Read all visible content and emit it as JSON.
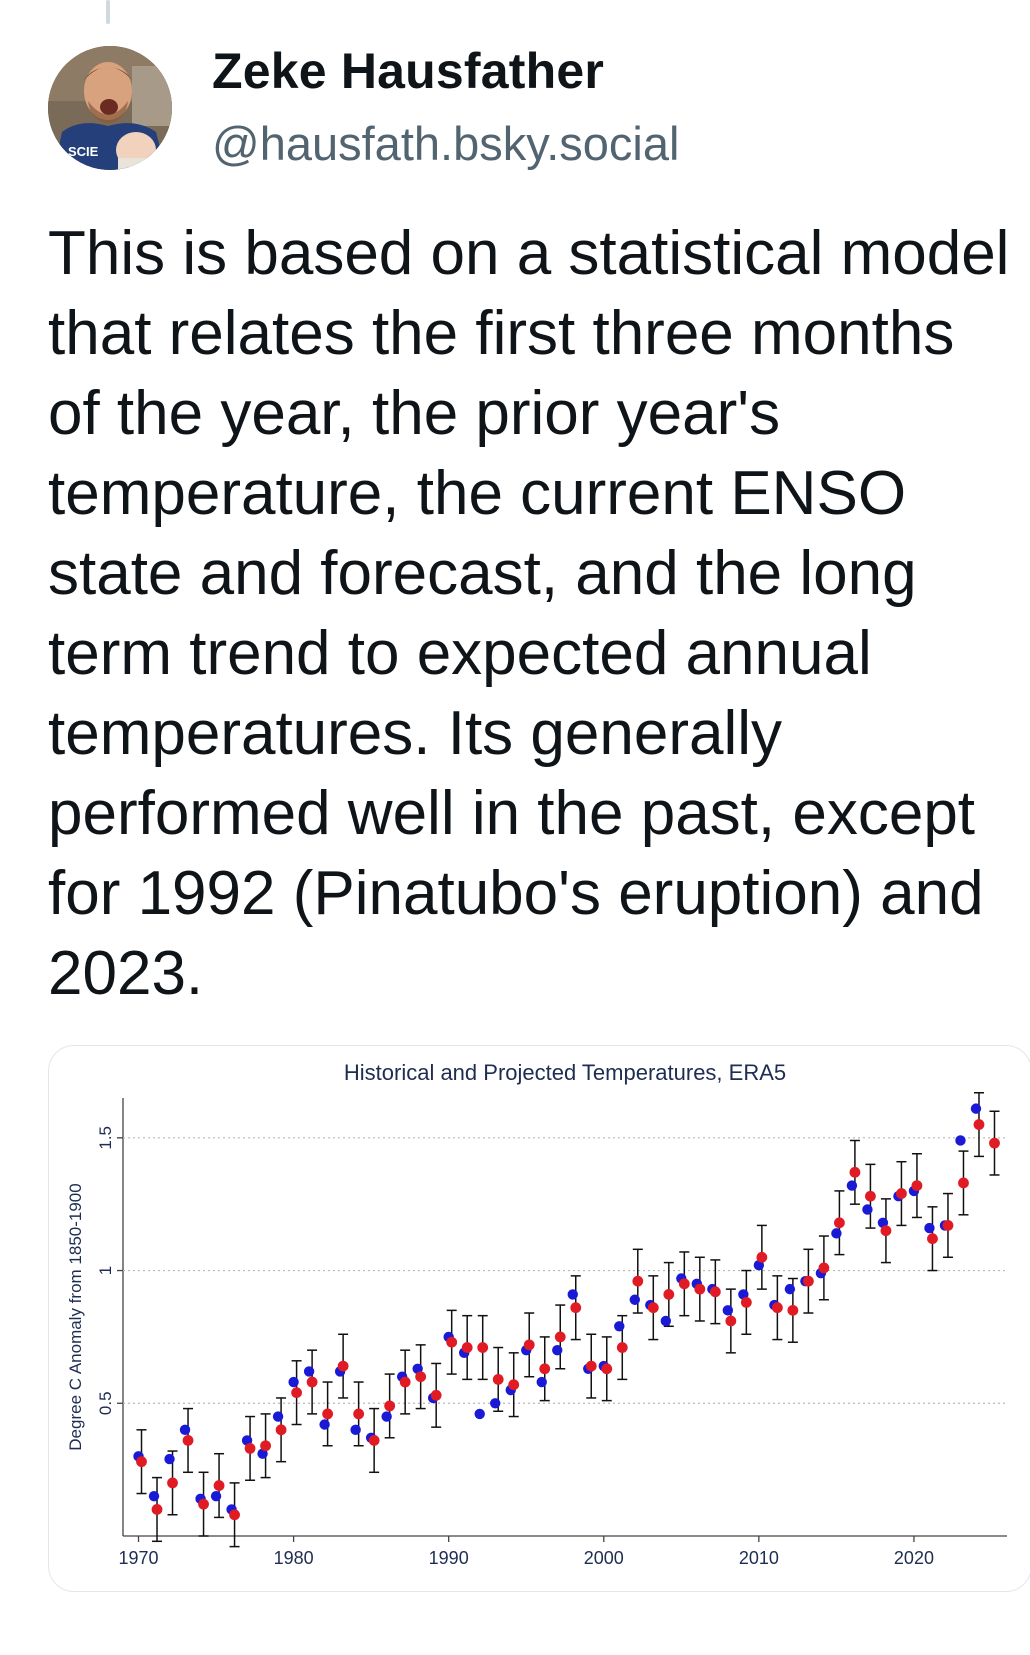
{
  "post": {
    "author_name": "Zeke Hausfather",
    "author_handle": "@hausfath.bsky.social",
    "text": "This is based on a statistical model that relates the first three months of the year, the prior year's temperature, the current ENSO state and forecast, and the long term trend to expected annual temperatures. Its generally performed well in the past, except for 1992 (Pinatubo's eruption) and 2023."
  },
  "avatar": {
    "shirt_text": "SCIE"
  },
  "colors": {
    "observed": "#1a1ad6",
    "projected": "#e01b24",
    "error_bar": "#111111",
    "grid": "#b8b8b8"
  },
  "chart_data": {
    "type": "scatter",
    "title": "Historical and Projected Temperatures, ERA5",
    "ylabel": "Degree C Anomaly from 1850-1900",
    "xlabel": "",
    "xlim": [
      1969,
      2026
    ],
    "ylim": [
      0,
      1.65
    ],
    "xticks": [
      "1970",
      "1980",
      "1990",
      "2000",
      "2010",
      "2020"
    ],
    "yticks": [
      "0.5",
      "1",
      "1.5"
    ],
    "grid": "horizontal dotted at 0.5, 1, 1.5",
    "error_bar_halfwidth": 0.12,
    "series": [
      {
        "x": [
          1970,
          1971,
          1972,
          1973,
          1974,
          1975,
          1976,
          1977,
          1978,
          1979,
          1980,
          1981,
          1982,
          1983,
          1984,
          1985,
          1986,
          1987,
          1988,
          1989,
          1990,
          1991,
          1992,
          1993,
          1994,
          1995,
          1996,
          1997,
          1998,
          1999,
          2000,
          2001,
          2002,
          2003,
          2004,
          2005,
          2006,
          2007,
          2008,
          2009,
          2010,
          2011,
          2012,
          2013,
          2014,
          2015,
          2016,
          2017,
          2018,
          2019,
          2020,
          2021,
          2022,
          2023,
          2024
        ],
        "values": [
          0.3,
          0.15,
          0.29,
          0.4,
          0.14,
          0.15,
          0.1,
          0.36,
          0.31,
          0.45,
          0.58,
          0.62,
          0.42,
          0.62,
          0.4,
          0.37,
          0.45,
          0.6,
          0.63,
          0.52,
          0.75,
          0.69,
          0.46,
          0.5,
          0.55,
          0.7,
          0.58,
          0.7,
          0.91,
          0.63,
          0.64,
          0.79,
          0.89,
          0.87,
          0.81,
          0.97,
          0.95,
          0.93,
          0.85,
          0.91,
          1.02,
          0.87,
          0.93,
          0.96,
          0.99,
          1.14,
          1.32,
          1.23,
          1.18,
          1.28,
          1.3,
          1.16,
          1.17,
          1.49,
          1.61
        ]
      },
      {
        "x": [
          1970,
          1971,
          1972,
          1973,
          1974,
          1975,
          1976,
          1977,
          1978,
          1979,
          1980,
          1981,
          1982,
          1983,
          1984,
          1985,
          1986,
          1987,
          1988,
          1989,
          1990,
          1991,
          1992,
          1993,
          1994,
          1995,
          1996,
          1997,
          1998,
          1999,
          2000,
          2001,
          2002,
          2003,
          2004,
          2005,
          2006,
          2007,
          2008,
          2009,
          2010,
          2011,
          2012,
          2013,
          2014,
          2015,
          2016,
          2017,
          2018,
          2019,
          2020,
          2021,
          2022,
          2023,
          2024,
          2025
        ],
        "values": [
          0.28,
          0.1,
          0.2,
          0.36,
          0.12,
          0.19,
          0.08,
          0.33,
          0.34,
          0.4,
          0.54,
          0.58,
          0.46,
          0.64,
          0.46,
          0.36,
          0.49,
          0.58,
          0.6,
          0.53,
          0.73,
          0.71,
          0.71,
          0.59,
          0.57,
          0.72,
          0.63,
          0.75,
          0.86,
          0.64,
          0.63,
          0.71,
          0.96,
          0.86,
          0.91,
          0.95,
          0.93,
          0.92,
          0.81,
          0.88,
          1.05,
          0.86,
          0.85,
          0.96,
          1.01,
          1.18,
          1.37,
          1.28,
          1.15,
          1.29,
          1.32,
          1.12,
          1.17,
          1.33,
          1.55,
          1.48
        ]
      }
    ]
  }
}
